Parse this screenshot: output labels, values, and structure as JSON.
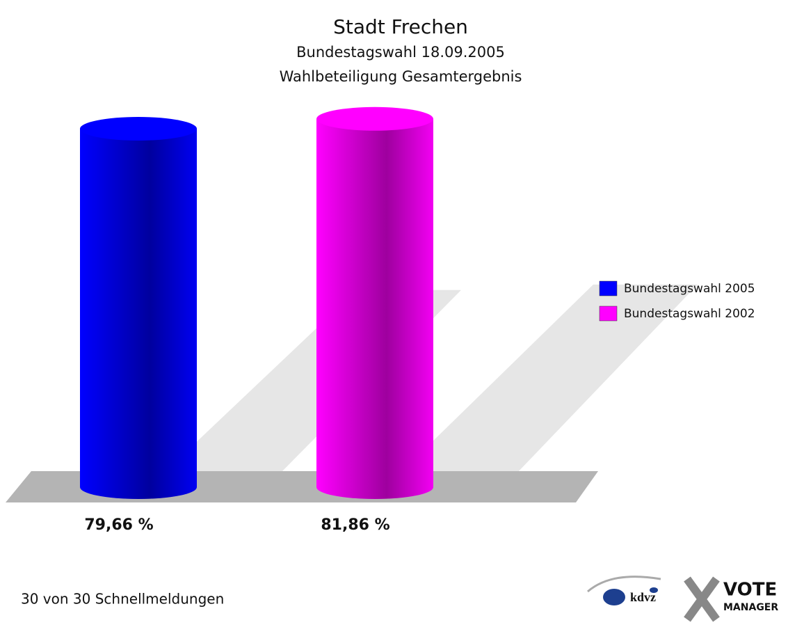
{
  "chart_data": {
    "type": "bar",
    "title": "Stadt Frechen",
    "subtitles": [
      "Bundestagswahl 18.09.2005",
      "Wahlbeteiligung Gesamtergebnis"
    ],
    "series": [
      {
        "name": "Bundestagswahl 2005",
        "color": "#0000ff",
        "values": [
          79.66
        ],
        "value_labels": [
          "79,66 %"
        ]
      },
      {
        "name": "Bundestagswahl 2002",
        "color": "#ff00ff",
        "values": [
          81.86
        ],
        "value_labels": [
          "81,86 %"
        ]
      }
    ],
    "legend": "right"
  },
  "footer": "30 von 30 Schnellmeldungen",
  "logo": {
    "left": "kdvz",
    "right_top": "VOTE",
    "right_bottom": "MANAGER"
  }
}
